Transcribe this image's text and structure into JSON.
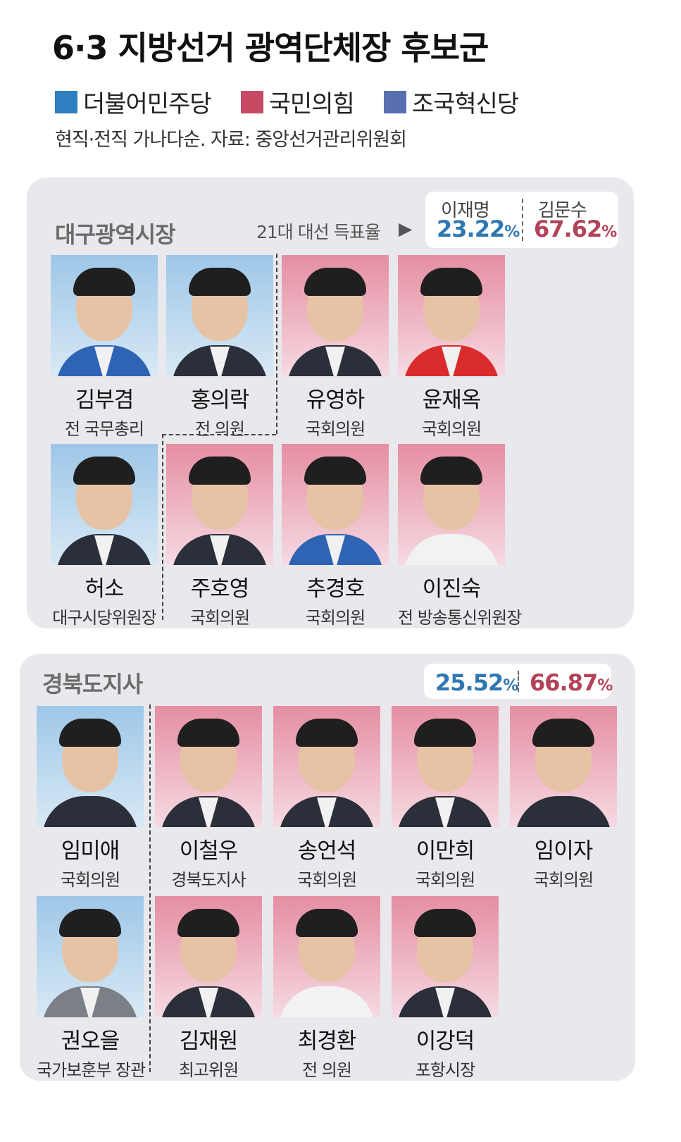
{
  "title": "6·3 지방선거 광역단체장 후보군",
  "legend": [
    {
      "label": "더불어민주당",
      "color": "#2f7ec1"
    },
    {
      "label": "국민의힘",
      "color": "#c64a63"
    },
    {
      "label": "조국혁신당",
      "color": "#5a6fb0"
    }
  ],
  "source_note": "현직·전직 가나다순. 자료: 중앙선거관리위원회",
  "daegu": {
    "region": "대구광역시장",
    "vote_caption": "21대 대선 득표율",
    "vote_arrow": "▶",
    "candidate_a": "이재명",
    "candidate_b": "김문수",
    "pct_a": "23.22",
    "pct_b": "67.62",
    "unit": "%",
    "candidates": [
      {
        "name": "김부겸",
        "title": "전 국무총리",
        "party": "더불어민주당"
      },
      {
        "name": "홍의락",
        "title": "전 의원",
        "party": "더불어민주당"
      },
      {
        "name": "유영하",
        "title": "국회의원",
        "party": "국민의힘"
      },
      {
        "name": "윤재옥",
        "title": "국회의원",
        "party": "국민의힘"
      },
      {
        "name": "허소",
        "title": "대구시당위원장",
        "party": "더불어민주당"
      },
      {
        "name": "주호영",
        "title": "국회의원",
        "party": "국민의힘"
      },
      {
        "name": "추경호",
        "title": "국회의원",
        "party": "국민의힘"
      },
      {
        "name": "이진숙",
        "title": "전 방송통신위원장",
        "party": "국민의힘"
      }
    ]
  },
  "gyeongbuk": {
    "region": "경북도지사",
    "pct_a": "25.52",
    "pct_b": "66.87",
    "unit": "%",
    "candidates": [
      {
        "name": "임미애",
        "title": "국회의원",
        "party": "더불어민주당"
      },
      {
        "name": "이철우",
        "title": "경북도지사",
        "party": "국민의힘"
      },
      {
        "name": "송언석",
        "title": "국회의원",
        "party": "국민의힘"
      },
      {
        "name": "이만희",
        "title": "국회의원",
        "party": "국민의힘"
      },
      {
        "name": "임이자",
        "title": "국회의원",
        "party": "국민의힘"
      },
      {
        "name": "권오을",
        "title": "국가보훈부 장관",
        "party": "더불어민주당"
      },
      {
        "name": "김재원",
        "title": "최고위원",
        "party": "국민의힘"
      },
      {
        "name": "최경환",
        "title": "전 의원",
        "party": "국민의힘"
      },
      {
        "name": "이강덕",
        "title": "포항시장",
        "party": "국민의힘"
      }
    ]
  }
}
